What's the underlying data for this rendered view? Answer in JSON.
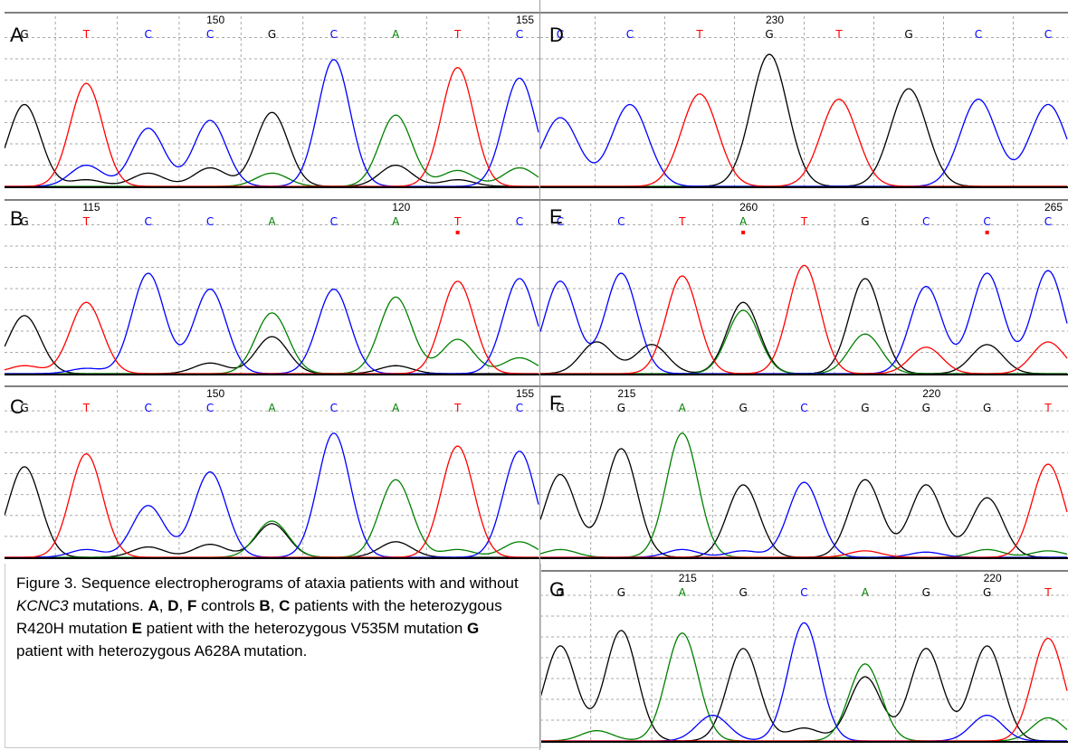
{
  "figure": {
    "caption": {
      "prefix": "Figure 3. Sequence electropherograms of ataxia patients with and without ",
      "gene": "KCNC3",
      "after_gene": " mutations. ",
      "parts": [
        {
          "bold": "A",
          "text": ", "
        },
        {
          "bold": "D",
          "text": ", "
        },
        {
          "bold": "F",
          "text": " controls "
        },
        {
          "bold": "B",
          "text": ", "
        },
        {
          "bold": "C",
          "text": " patients with the heterozygous R420H mutation "
        },
        {
          "bold": "E",
          "text": " patient with the heterozygous V535M mutation "
        },
        {
          "bold": "G",
          "text": " patient with heterozygous A628A mutation."
        }
      ]
    },
    "colors": {
      "G": "#000000",
      "A": "#008000",
      "T": "#ff0000",
      "C": "#0000ff",
      "grid": "#aaaaaa",
      "marker": "#ff0000"
    },
    "panels": [
      {
        "letter": "A",
        "bases": [
          "G",
          "T",
          "C",
          "C",
          "G",
          "C",
          "A",
          "T",
          "C"
        ],
        "positions": [
          {
            "label": "150",
            "index": 3
          },
          {
            "label": "155",
            "index": 8
          }
        ],
        "markers": [],
        "peaks": {
          "G": [
            [
              0,
              0.62
            ],
            [
              1,
              0.05
            ],
            [
              2,
              0.1
            ],
            [
              3,
              0.14
            ],
            [
              4,
              0.56
            ],
            [
              6,
              0.16
            ],
            [
              7,
              0.05
            ]
          ],
          "T": [
            [
              1,
              0.78
            ],
            [
              7,
              0.9
            ]
          ],
          "C": [
            [
              1,
              0.16
            ],
            [
              2,
              0.44
            ],
            [
              3,
              0.5
            ],
            [
              5,
              0.96
            ],
            [
              8,
              0.82
            ]
          ],
          "A": [
            [
              4,
              0.1
            ],
            [
              6,
              0.54
            ],
            [
              7,
              0.12
            ],
            [
              8,
              0.14
            ]
          ]
        }
      },
      {
        "letter": "D",
        "bases": [
          "C",
          "C",
          "T",
          "G",
          "T",
          "G",
          "C",
          "C"
        ],
        "positions": [
          {
            "label": "230",
            "index": 3
          }
        ],
        "markers": [],
        "peaks": {
          "C": [
            [
              0,
              0.52
            ],
            [
              1,
              0.62
            ],
            [
              6,
              0.66
            ],
            [
              7,
              0.62
            ]
          ],
          "T": [
            [
              2,
              0.7
            ],
            [
              4,
              0.66
            ]
          ],
          "G": [
            [
              3,
              1.0
            ],
            [
              5,
              0.74
            ]
          ],
          "A": []
        }
      },
      {
        "letter": "B",
        "bases": [
          "G",
          "T",
          "C",
          "C",
          "A",
          "C",
          "A",
          "T",
          "C"
        ],
        "positions": [
          {
            "label": "115",
            "index": 1
          },
          {
            "label": "120",
            "index": 6
          }
        ],
        "markers": [
          7
        ],
        "peaks": {
          "G": [
            [
              0,
              0.44
            ],
            [
              3,
              0.08
            ],
            [
              4,
              0.28
            ],
            [
              6,
              0.06
            ]
          ],
          "T": [
            [
              0,
              0.06
            ],
            [
              1,
              0.54
            ],
            [
              7,
              0.7
            ]
          ],
          "C": [
            [
              1,
              0.04
            ],
            [
              2,
              0.76
            ],
            [
              3,
              0.64
            ],
            [
              5,
              0.64
            ],
            [
              8,
              0.72
            ]
          ],
          "A": [
            [
              4,
              0.46
            ],
            [
              6,
              0.58
            ],
            [
              7,
              0.26
            ],
            [
              8,
              0.12
            ]
          ]
        }
      },
      {
        "letter": "E",
        "bases": [
          "C",
          "C",
          "T",
          "A",
          "T",
          "G",
          "C",
          "C",
          "C"
        ],
        "positions": [
          {
            "label": "260",
            "index": 3
          },
          {
            "label": "265",
            "index": 8
          }
        ],
        "markers": [
          3,
          7
        ],
        "peaks": {
          "C": [
            [
              0,
              0.7
            ],
            [
              1,
              0.76
            ],
            [
              6,
              0.66
            ],
            [
              7,
              0.76
            ],
            [
              8,
              0.78
            ]
          ],
          "T": [
            [
              2,
              0.74
            ],
            [
              4,
              0.82
            ],
            [
              6,
              0.2
            ],
            [
              8,
              0.24
            ]
          ],
          "G": [
            [
              0.6,
              0.24
            ],
            [
              1.5,
              0.22
            ],
            [
              3,
              0.54
            ],
            [
              5,
              0.72
            ],
            [
              7,
              0.22
            ]
          ],
          "A": [
            [
              3,
              0.48
            ],
            [
              5,
              0.3
            ]
          ]
        }
      },
      {
        "letter": "C",
        "bases": [
          "G",
          "T",
          "C",
          "C",
          "A",
          "C",
          "A",
          "T",
          "C"
        ],
        "positions": [
          {
            "label": "150",
            "index": 3
          },
          {
            "label": "155",
            "index": 8
          }
        ],
        "markers": [],
        "peaks": {
          "G": [
            [
              0,
              0.7
            ],
            [
              2,
              0.08
            ],
            [
              3,
              0.1
            ],
            [
              4,
              0.26
            ],
            [
              6,
              0.12
            ]
          ],
          "T": [
            [
              1,
              0.8
            ],
            [
              7,
              0.86
            ]
          ],
          "C": [
            [
              1,
              0.06
            ],
            [
              2,
              0.4
            ],
            [
              3,
              0.66
            ],
            [
              5,
              0.96
            ],
            [
              8,
              0.82
            ]
          ],
          "A": [
            [
              4,
              0.28
            ],
            [
              6,
              0.6
            ],
            [
              7,
              0.06
            ],
            [
              8,
              0.12
            ]
          ]
        }
      },
      {
        "letter": "F",
        "bases": [
          "G",
          "G",
          "A",
          "G",
          "C",
          "G",
          "G",
          "G",
          "T"
        ],
        "positions": [
          {
            "label": "215",
            "index": 1
          },
          {
            "label": "220",
            "index": 6
          }
        ],
        "markers": [],
        "peaks": {
          "G": [
            [
              0,
              0.64
            ],
            [
              1,
              0.84
            ],
            [
              3,
              0.56
            ],
            [
              5,
              0.6
            ],
            [
              6,
              0.56
            ],
            [
              7,
              0.46
            ]
          ],
          "A": [
            [
              0,
              0.06
            ],
            [
              2,
              0.96
            ],
            [
              7,
              0.06
            ],
            [
              8,
              0.05
            ]
          ],
          "C": [
            [
              2,
              0.06
            ],
            [
              3,
              0.05
            ],
            [
              4,
              0.58
            ],
            [
              6,
              0.04
            ]
          ],
          "T": [
            [
              5,
              0.05
            ],
            [
              8,
              0.72
            ]
          ]
        }
      },
      {
        "letter": "G",
        "bases": [
          "G",
          "G",
          "A",
          "G",
          "C",
          "A",
          "G",
          "G",
          "T"
        ],
        "positions": [
          {
            "label": "215",
            "index": 2
          },
          {
            "label": "220",
            "index": 7
          }
        ],
        "markers": [],
        "peaks": {
          "G": [
            [
              0,
              0.74
            ],
            [
              1,
              0.86
            ],
            [
              3,
              0.72
            ],
            [
              4,
              0.1
            ],
            [
              5,
              0.5
            ],
            [
              6,
              0.72
            ],
            [
              7,
              0.74
            ]
          ],
          "A": [
            [
              2,
              0.84
            ],
            [
              5,
              0.6
            ],
            [
              0.6,
              0.08
            ],
            [
              8,
              0.18
            ]
          ],
          "C": [
            [
              2.5,
              0.2
            ],
            [
              4,
              0.92
            ],
            [
              7,
              0.2
            ]
          ],
          "T": [
            [
              8,
              0.8
            ]
          ]
        }
      }
    ]
  }
}
